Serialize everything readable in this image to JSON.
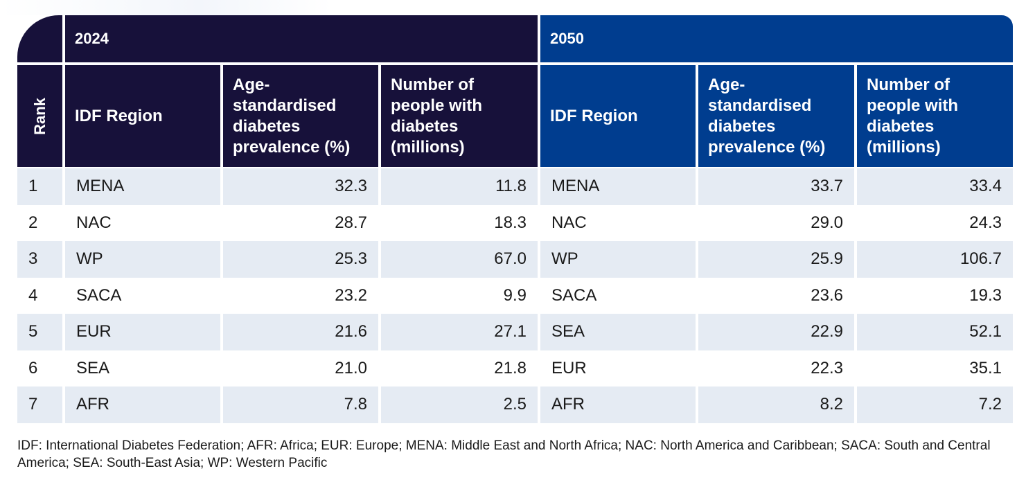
{
  "colors": {
    "header_2024": "#17113a",
    "header_2050": "#003d8f",
    "row_shade": "#e5ebf3"
  },
  "table": {
    "groups": {
      "y2024": "2024",
      "y2050": "2050"
    },
    "headers": {
      "rank": "Rank",
      "region_2024": "IDF Region",
      "prev_2024": "Age-standardised diabetes prevalence (%)",
      "num_2024": "Number of people with diabetes (millions)",
      "region_2050": "IDF Region",
      "prev_2050": "Age-standardised diabetes prevalence (%)",
      "num_2050": "Number of people with diabetes (millions)"
    },
    "rows": [
      {
        "rank": "1",
        "r24": "MENA",
        "p24": "32.3",
        "n24": "11.8",
        "r50": "MENA",
        "p50": "33.7",
        "n50": "33.4"
      },
      {
        "rank": "2",
        "r24": "NAC",
        "p24": "28.7",
        "n24": "18.3",
        "r50": "NAC",
        "p50": "29.0",
        "n50": "24.3"
      },
      {
        "rank": "3",
        "r24": "WP",
        "p24": "25.3",
        "n24": "67.0",
        "r50": "WP",
        "p50": "25.9",
        "n50": "106.7"
      },
      {
        "rank": "4",
        "r24": "SACA",
        "p24": "23.2",
        "n24": "9.9",
        "r50": "SACA",
        "p50": "23.6",
        "n50": "19.3"
      },
      {
        "rank": "5",
        "r24": "EUR",
        "p24": "21.6",
        "n24": "27.1",
        "r50": "SEA",
        "p50": "22.9",
        "n50": "52.1"
      },
      {
        "rank": "6",
        "r24": "SEA",
        "p24": "21.0",
        "n24": "21.8",
        "r50": "EUR",
        "p50": "22.3",
        "n50": "35.1"
      },
      {
        "rank": "7",
        "r24": "AFR",
        "p24": "7.8",
        "n24": "2.5",
        "r50": "AFR",
        "p50": "8.2",
        "n50": "7.2"
      }
    ]
  },
  "footnote": "IDF: International Diabetes Federation; AFR: Africa; EUR: Europe; MENA: Middle East and North Africa; NAC: North America and Caribbean; SACA: South and Central America; SEA: South-East Asia; WP: Western Pacific"
}
